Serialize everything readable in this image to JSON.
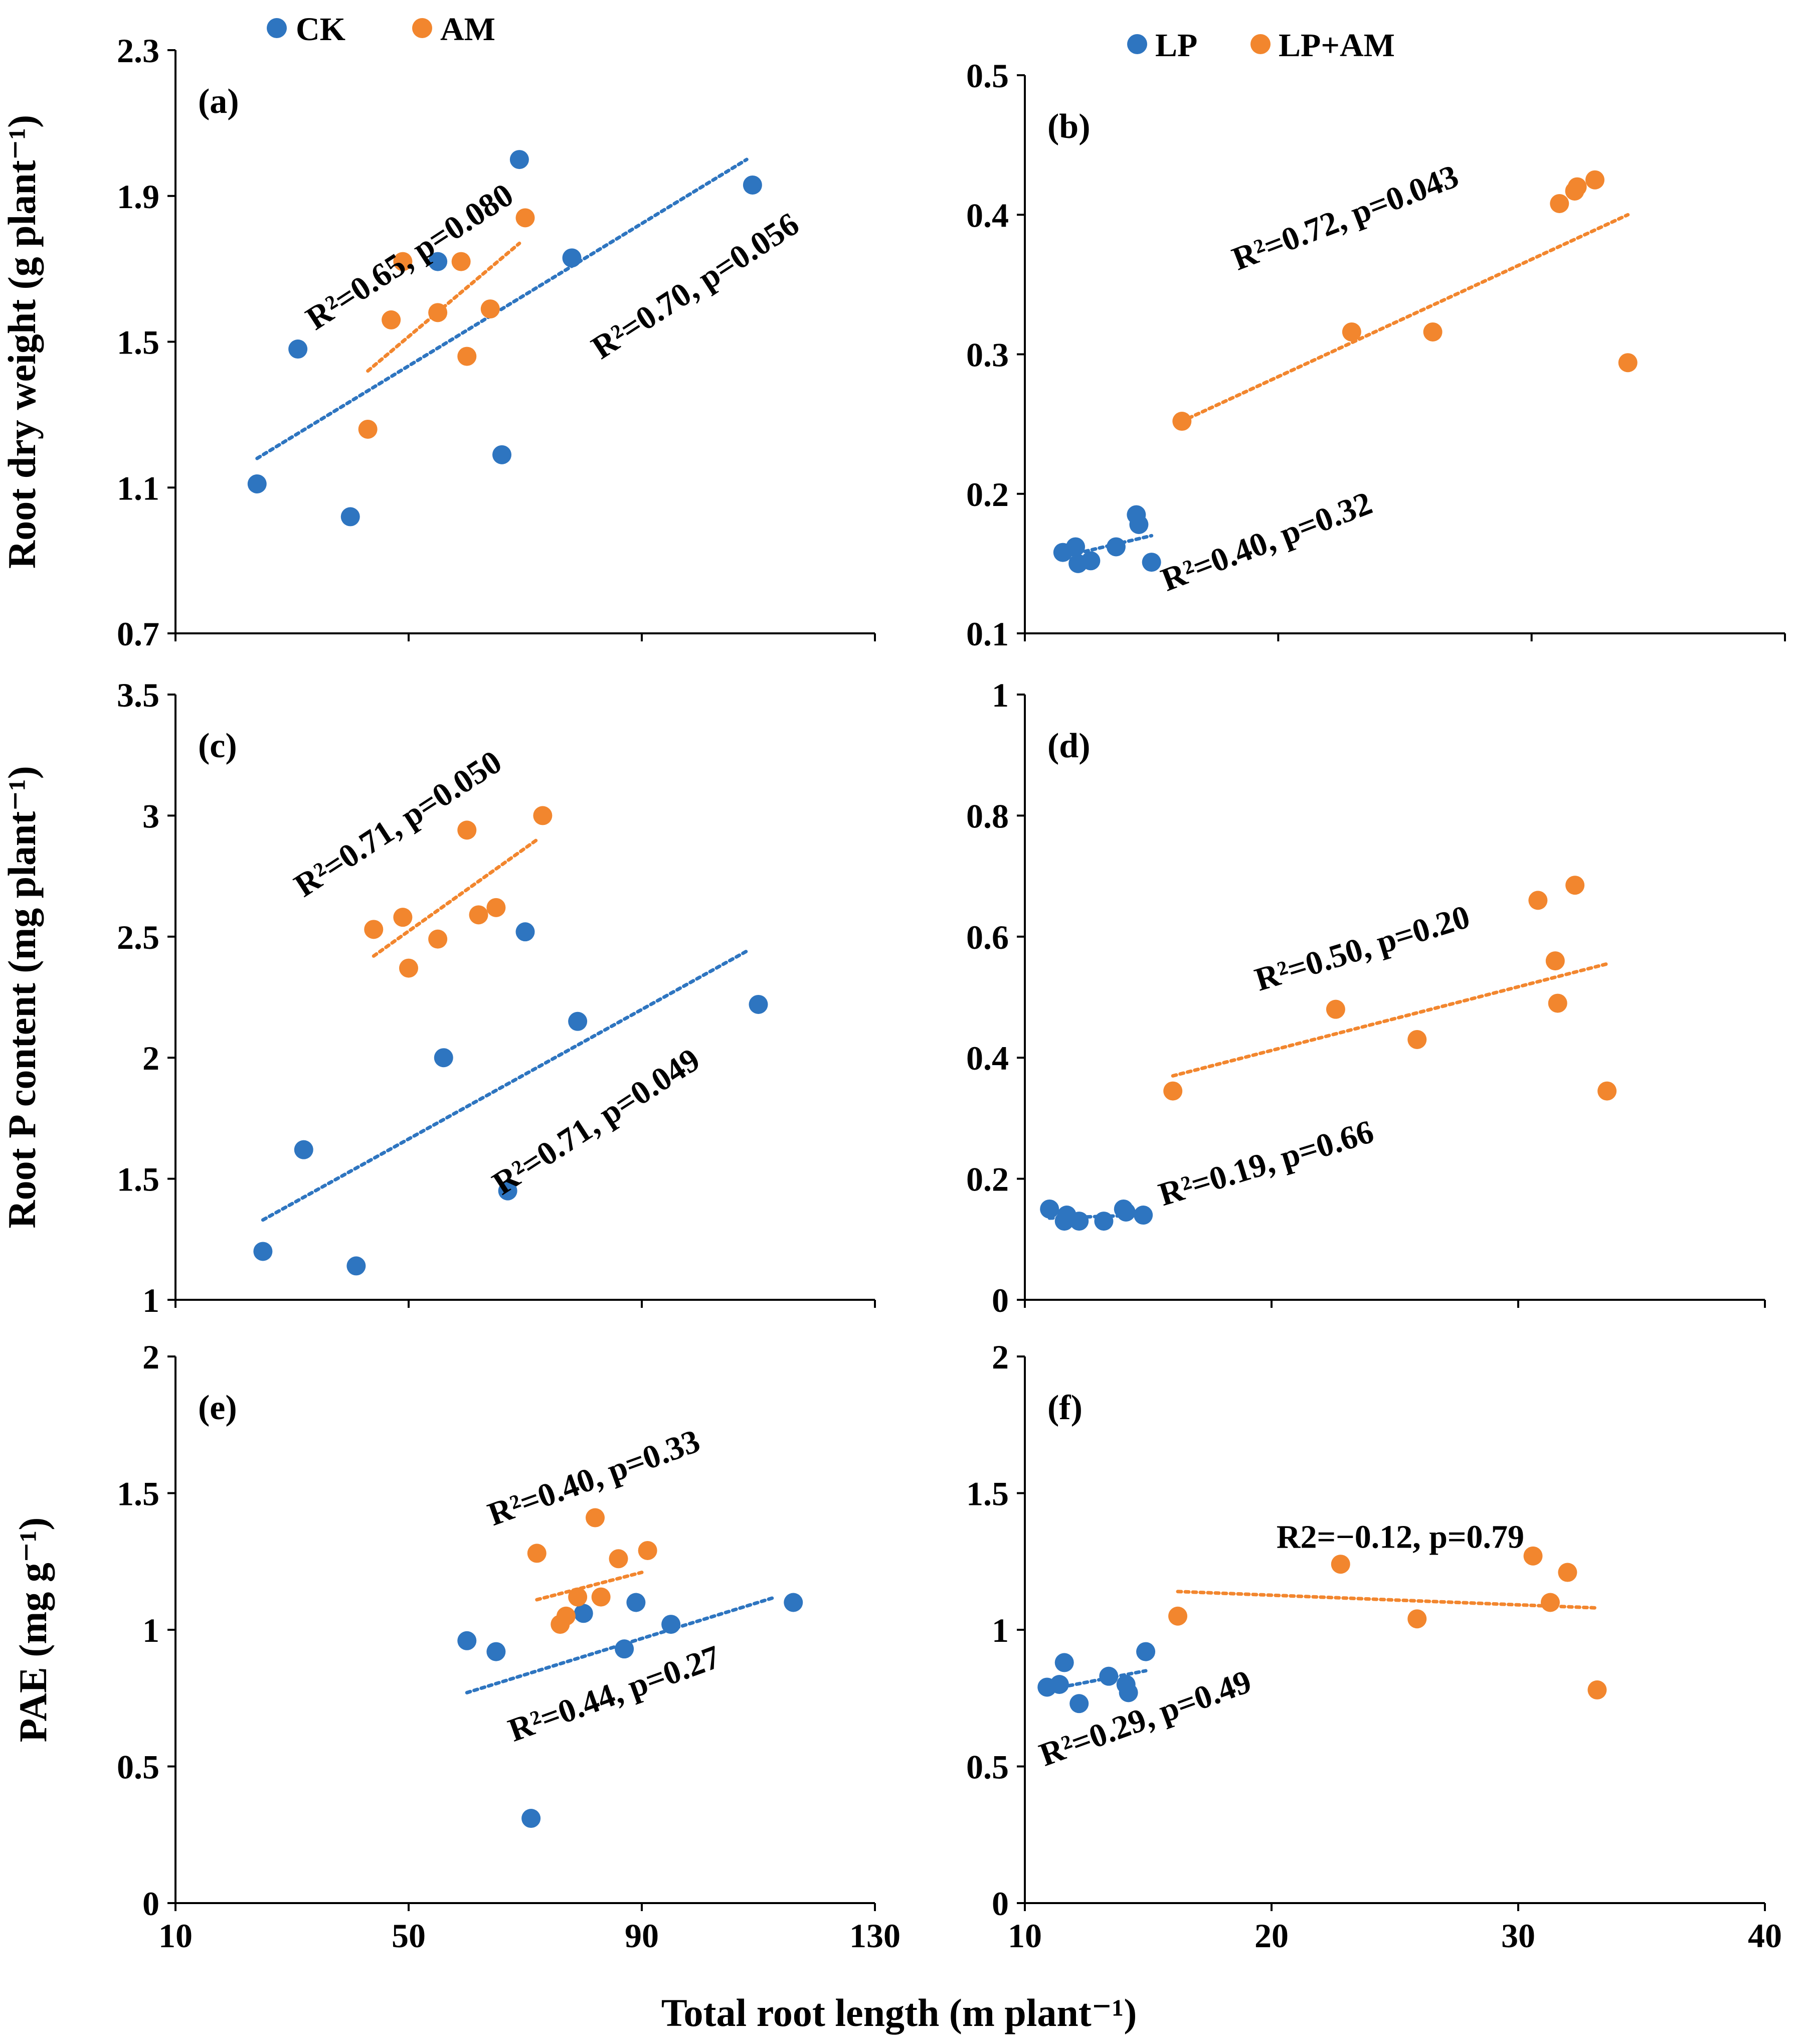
{
  "xlabel": "Total root length (m plant⁻¹)",
  "colors": {
    "blue": "#2e75c0",
    "orange": "#f2862e"
  },
  "legends": [
    {
      "items": [
        {
          "name": "CK",
          "color": "#2e75c0"
        },
        {
          "name": "AM",
          "color": "#f2862e"
        }
      ]
    },
    {
      "items": [
        {
          "name": "LP",
          "color": "#2e75c0"
        },
        {
          "name": "LP+AM",
          "color": "#f2862e"
        }
      ]
    }
  ],
  "chart_data": [
    {
      "id": "a",
      "type": "scatter",
      "label": "(a)",
      "ylabel": "Root dry weight (g plant⁻¹)",
      "xlim": [
        10,
        130
      ],
      "ylim": [
        0.7,
        2.3
      ],
      "xticks": [],
      "yticks": [
        "0.7",
        "1.1",
        "1.5",
        "1.9",
        "2.3"
      ],
      "series": [
        {
          "name": "CK",
          "color": "#2e75c0",
          "points": [
            [
              24,
              1.11
            ],
            [
              31,
              1.48
            ],
            [
              40,
              1.02
            ],
            [
              55,
              1.72
            ],
            [
              66,
              1.19
            ],
            [
              69,
              2.0
            ],
            [
              78,
              1.73
            ],
            [
              109,
              1.93
            ]
          ],
          "trend": [
            [
              24,
              1.18
            ],
            [
              108,
              2.0
            ]
          ]
        },
        {
          "name": "AM",
          "color": "#f2862e",
          "points": [
            [
              43,
              1.26
            ],
            [
              47,
              1.56
            ],
            [
              49,
              1.72
            ],
            [
              55,
              1.58
            ],
            [
              59,
              1.72
            ],
            [
              60,
              1.46
            ],
            [
              64,
              1.59
            ],
            [
              70,
              1.84
            ]
          ],
          "trend": [
            [
              43,
              1.42
            ],
            [
              69,
              1.77
            ]
          ]
        }
      ],
      "annotations": [
        {
          "text": "R²=0.65, p=0.080",
          "anchor": [
            34,
            1.53
          ],
          "rotate": -33
        },
        {
          "text": "R²=0.70, p=0.056",
          "anchor": [
            83,
            1.45
          ],
          "rotate": -33
        }
      ]
    },
    {
      "id": "b",
      "type": "scatter",
      "label": "(b)",
      "ylabel": "",
      "xlim": [
        10,
        40
      ],
      "ylim": [
        0.1,
        0.5
      ],
      "xticks": [],
      "yticks": [
        "0.1",
        "0.2",
        "0.3",
        "0.4",
        "0.5"
      ],
      "series": [
        {
          "name": "LP",
          "color": "#2e75c0",
          "points": [
            [
              11.5,
              0.158
            ],
            [
              12.0,
              0.162
            ],
            [
              12.1,
              0.15
            ],
            [
              12.6,
              0.152
            ],
            [
              13.6,
              0.162
            ],
            [
              14.4,
              0.185
            ],
            [
              14.5,
              0.178
            ],
            [
              15.0,
              0.151
            ]
          ],
          "trend": [
            [
              11.5,
              0.155
            ],
            [
              15.0,
              0.17
            ]
          ]
        },
        {
          "name": "LP+AM",
          "color": "#f2862e",
          "points": [
            [
              16.2,
              0.252
            ],
            [
              22.9,
              0.316
            ],
            [
              26.1,
              0.316
            ],
            [
              31.1,
              0.408
            ],
            [
              31.7,
              0.417
            ],
            [
              31.8,
              0.42
            ],
            [
              32.5,
              0.425
            ],
            [
              33.8,
              0.294
            ]
          ],
          "trend": [
            [
              16.2,
              0.252
            ],
            [
              33.8,
              0.4
            ]
          ]
        }
      ],
      "annotations": [
        {
          "text": "R²=0.72, p=0.043",
          "anchor": [
            18.4,
            0.36
          ],
          "rotate": -21
        },
        {
          "text": "R²=0.40, p=0.32",
          "anchor": [
            15.6,
            0.13
          ],
          "rotate": -21
        }
      ]
    },
    {
      "id": "c",
      "type": "scatter",
      "label": "(c)",
      "ylabel": "Root P content (mg plant⁻¹)",
      "xlim": [
        10,
        130
      ],
      "ylim": [
        1,
        3.5
      ],
      "xticks": [],
      "yticks": [
        "1",
        "1.5",
        "2",
        "2.5",
        "3",
        "3.5"
      ],
      "series": [
        {
          "name": "CK",
          "color": "#2e75c0",
          "points": [
            [
              25,
              1.2
            ],
            [
              32,
              1.62
            ],
            [
              41,
              1.14
            ],
            [
              56,
              2.0
            ],
            [
              67,
              1.45
            ],
            [
              70,
              2.52
            ],
            [
              79,
              2.15
            ],
            [
              110,
              2.22
            ]
          ],
          "trend": [
            [
              25,
              1.33
            ],
            [
              108,
              2.44
            ]
          ]
        },
        {
          "name": "AM",
          "color": "#f2862e",
          "points": [
            [
              44,
              2.53
            ],
            [
              49,
              2.58
            ],
            [
              50,
              2.37
            ],
            [
              55,
              2.49
            ],
            [
              60,
              2.94
            ],
            [
              62,
              2.59
            ],
            [
              65,
              2.62
            ],
            [
              73,
              3.0
            ]
          ],
          "trend": [
            [
              44,
              2.42
            ],
            [
              72,
              2.9
            ]
          ]
        }
      ],
      "annotations": [
        {
          "text": "R²=0.71, p=0.050",
          "anchor": [
            32,
            2.66
          ],
          "rotate": -33
        },
        {
          "text": "R²=0.71,  p=0.049",
          "anchor": [
            66,
            1.43
          ],
          "rotate": -33
        }
      ]
    },
    {
      "id": "d",
      "type": "scatter",
      "label": "(d)",
      "ylabel": "",
      "xlim": [
        10,
        40
      ],
      "ylim": [
        0,
        1
      ],
      "xticks": [],
      "yticks": [
        "0",
        "0.2",
        "0.4",
        "0.6",
        "0.8",
        "1"
      ],
      "series": [
        {
          "name": "LP",
          "color": "#2e75c0",
          "points": [
            [
              11.0,
              0.15
            ],
            [
              11.6,
              0.13
            ],
            [
              11.7,
              0.14
            ],
            [
              12.2,
              0.13
            ],
            [
              13.2,
              0.13
            ],
            [
              14.0,
              0.15
            ],
            [
              14.1,
              0.145
            ],
            [
              14.8,
              0.14
            ]
          ],
          "trend": [
            [
              11.0,
              0.135
            ],
            [
              14.8,
              0.14
            ]
          ]
        },
        {
          "name": "LP+AM",
          "color": "#f2862e",
          "points": [
            [
              16.0,
              0.345
            ],
            [
              22.6,
              0.48
            ],
            [
              25.9,
              0.43
            ],
            [
              30.8,
              0.66
            ],
            [
              31.5,
              0.56
            ],
            [
              31.6,
              0.49
            ],
            [
              32.3,
              0.685
            ],
            [
              33.6,
              0.345
            ]
          ],
          "trend": [
            [
              16.0,
              0.37
            ],
            [
              33.6,
              0.555
            ]
          ]
        }
      ],
      "annotations": [
        {
          "text": "R²=0.50, p=0.20",
          "anchor": [
            19.5,
            0.51
          ],
          "rotate": -17
        },
        {
          "text": "R²=0.19, p=0.66",
          "anchor": [
            15.6,
            0.155
          ],
          "rotate": -17
        }
      ]
    },
    {
      "id": "e",
      "type": "scatter",
      "label": "(e)",
      "ylabel": "PAE (mg g⁻¹)",
      "xlim": [
        10,
        130
      ],
      "ylim": [
        0,
        2
      ],
      "xticks": [
        "10",
        "50",
        "90",
        "130"
      ],
      "yticks": [
        "0",
        "0.5",
        "1",
        "1.5",
        "2"
      ],
      "series": [
        {
          "name": "CK",
          "color": "#2e75c0",
          "points": [
            [
              60,
              0.96
            ],
            [
              65,
              0.92
            ],
            [
              71,
              0.31
            ],
            [
              80,
              1.06
            ],
            [
              87,
              0.93
            ],
            [
              89,
              1.1
            ],
            [
              95,
              1.02
            ],
            [
              116,
              1.1
            ]
          ],
          "trend": [
            [
              60,
              0.77
            ],
            [
              113,
              1.12
            ]
          ]
        },
        {
          "name": "AM",
          "color": "#f2862e",
          "points": [
            [
              72,
              1.28
            ],
            [
              76,
              1.02
            ],
            [
              77,
              1.05
            ],
            [
              79,
              1.12
            ],
            [
              82,
              1.41
            ],
            [
              83,
              1.12
            ],
            [
              86,
              1.26
            ],
            [
              91,
              1.29
            ]
          ],
          "trend": [
            [
              72,
              1.11
            ],
            [
              90,
              1.21
            ]
          ]
        }
      ],
      "annotations": [
        {
          "text": "R²=0.40, p=0.33",
          "anchor": [
            64.5,
            1.38
          ],
          "rotate": -20
        },
        {
          "text": "R²=0.44, p=0.27",
          "anchor": [
            68,
            0.59
          ],
          "rotate": -20
        }
      ]
    },
    {
      "id": "f",
      "type": "scatter",
      "label": "(f)",
      "ylabel": "",
      "xlim": [
        10,
        40
      ],
      "ylim": [
        0,
        2
      ],
      "xticks": [
        "10",
        "20",
        "30",
        "40"
      ],
      "yticks": [
        "0",
        "0.5",
        "1",
        "1.5",
        "2"
      ],
      "series": [
        {
          "name": "LP",
          "color": "#2e75c0",
          "points": [
            [
              10.9,
              0.79
            ],
            [
              11.4,
              0.8
            ],
            [
              11.6,
              0.88
            ],
            [
              12.2,
              0.73
            ],
            [
              13.4,
              0.83
            ],
            [
              14.1,
              0.8
            ],
            [
              14.2,
              0.77
            ],
            [
              14.9,
              0.92
            ]
          ],
          "trend": [
            [
              10.9,
              0.78
            ],
            [
              14.9,
              0.85
            ]
          ]
        },
        {
          "name": "LP+AM",
          "color": "#f2862e",
          "points": [
            [
              16.2,
              1.05
            ],
            [
              22.8,
              1.24
            ],
            [
              25.9,
              1.04
            ],
            [
              30.6,
              1.27
            ],
            [
              31.3,
              1.1
            ],
            [
              32.0,
              1.21
            ],
            [
              33.2,
              0.78
            ]
          ],
          "trend": [
            [
              16.2,
              1.14
            ],
            [
              33.2,
              1.08
            ]
          ]
        }
      ],
      "annotations": [
        {
          "text": "R2=−0.12, p=0.79",
          "anchor": [
            20.2,
            1.3
          ],
          "rotate": 0
        },
        {
          "text": "R²=0.29, p=0.49",
          "anchor": [
            10.8,
            0.5
          ],
          "rotate": -20
        }
      ]
    }
  ]
}
